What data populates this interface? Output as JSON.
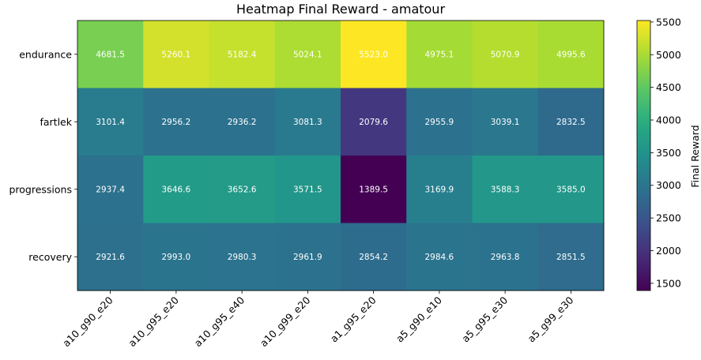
{
  "chart_data": {
    "type": "heatmap",
    "title": "Heatmap Final Reward - amatour",
    "x_categories": [
      "a10_g90_e20",
      "a10_g95_e20",
      "a10_g95_e40",
      "a10_g99_e20",
      "a1_g95_e20",
      "a5_g90_e10",
      "a5_g95_e30",
      "a5_g99_e30"
    ],
    "y_categories": [
      "endurance",
      "fartlek",
      "progressions",
      "recovery"
    ],
    "values": [
      [
        4681.5,
        5260.1,
        5182.4,
        5024.1,
        5523.0,
        4975.1,
        5070.9,
        4995.6
      ],
      [
        3101.4,
        2956.2,
        2936.2,
        3081.3,
        2079.6,
        2955.9,
        3039.1,
        2832.5
      ],
      [
        2937.4,
        3646.6,
        3652.6,
        3571.5,
        1389.5,
        3169.9,
        3588.3,
        3585.0
      ],
      [
        2921.6,
        2993.0,
        2980.3,
        2961.9,
        2854.2,
        2984.6,
        2963.8,
        2851.5
      ]
    ],
    "value_labels": [
      [
        "4681.5",
        "5260.1",
        "5182.4",
        "5024.1",
        "5523.0",
        "4975.1",
        "5070.9",
        "4995.6"
      ],
      [
        "3101.4",
        "2956.2",
        "2936.2",
        "3081.3",
        "2079.6",
        "2955.9",
        "3039.1",
        "2832.5"
      ],
      [
        "2937.4",
        "3646.6",
        "3652.6",
        "3571.5",
        "1389.5",
        "3169.9",
        "3588.3",
        "3585.0"
      ],
      [
        "2921.6",
        "2993.0",
        "2980.3",
        "2961.9",
        "2854.2",
        "2984.6",
        "2963.8",
        "2851.5"
      ]
    ],
    "colormap": "viridis",
    "vmin": 1389.5,
    "vmax": 5523.0,
    "colorbar": {
      "label": "Final Reward",
      "ticks": [
        1500,
        2000,
        2500,
        3000,
        3500,
        4000,
        4500,
        5000,
        5500
      ],
      "tick_labels": [
        "1500",
        "2000",
        "2500",
        "3000",
        "3500",
        "4000",
        "4500",
        "5000",
        "5500"
      ]
    }
  }
}
